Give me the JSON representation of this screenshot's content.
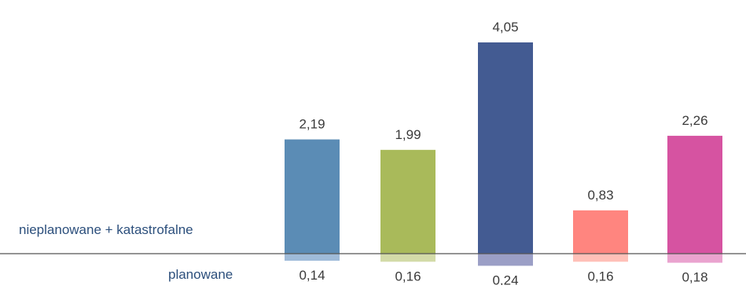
{
  "chart_data": {
    "type": "bar",
    "series": [
      {
        "name": "nieplanowane + katastrofalne",
        "values": [
          2.19,
          1.99,
          4.05,
          0.83,
          2.26
        ],
        "value_labels": [
          "2,19",
          "1,99",
          "4,05",
          "0,83",
          "2,26"
        ],
        "colors": [
          "#5b8cb5",
          "#a9ba5a",
          "#435b92",
          "#ff857f",
          "#d653a1"
        ]
      },
      {
        "name": "planowane",
        "values": [
          0.14,
          0.16,
          0.24,
          0.16,
          0.18
        ],
        "value_labels": [
          "0,14",
          "0,16",
          "0,24",
          "0,16",
          "0,18"
        ],
        "colors": [
          "#9fbbd9",
          "#d3dba8",
          "#9b9fc6",
          "#ffc0b8",
          "#eaa3cf"
        ]
      }
    ],
    "baseline_color": "#555555",
    "grid": false
  }
}
